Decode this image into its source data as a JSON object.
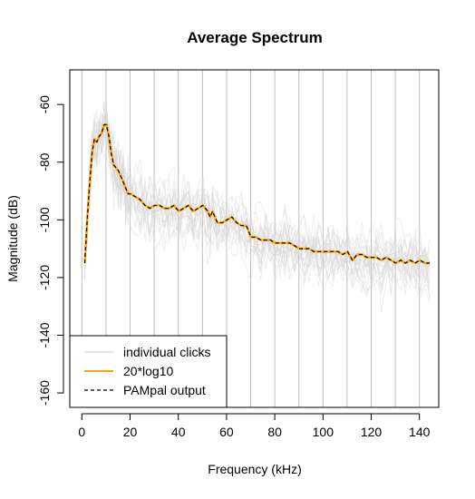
{
  "chart_data": {
    "type": "line",
    "title": "Average Spectrum",
    "xlabel": "Frequency (kHz)",
    "ylabel": "Magnitude (dB)",
    "xlim": [
      -5,
      148
    ],
    "ylim": [
      -165,
      -48
    ],
    "x_ticks": [
      0,
      20,
      40,
      60,
      80,
      100,
      120,
      140
    ],
    "y_ticks": [
      -160,
      -140,
      -120,
      -100,
      -80,
      -60
    ],
    "vertical_grid_x": [
      0,
      10,
      20,
      30,
      40,
      50,
      60,
      70,
      80,
      90,
      100,
      110,
      120,
      130,
      140
    ],
    "legend": {
      "position": "bottom-left",
      "entries": [
        {
          "label": "individual clicks",
          "color": "#c8c8c8",
          "style": "solid"
        },
        {
          "label": "20*log10",
          "color": "#ffa500",
          "style": "solid"
        },
        {
          "label": "PAMpal output",
          "color": "#000000",
          "style": "dashed"
        }
      ]
    },
    "series": [
      {
        "name": "20*log10",
        "color": "#ffa500",
        "x": [
          1.2,
          2.2,
          3.2,
          4.2,
          5.2,
          6.2,
          7.2,
          8.2,
          9.2,
          10.2,
          11.2,
          12.2,
          13.2,
          14.2,
          15.2,
          16.2,
          17.2,
          18.2,
          19.2,
          20.2,
          22.2,
          24.2,
          26.2,
          28.2,
          30.2,
          32.2,
          34.2,
          36.2,
          38.2,
          40.2,
          42.2,
          44.2,
          46.2,
          48.2,
          50.2,
          52.2,
          53.2,
          54.2,
          56.2,
          58.2,
          60.2,
          62.2,
          64.2,
          66.2,
          68.2,
          70.2,
          72.2,
          74.2,
          76.2,
          78.2,
          80.2,
          82.2,
          84.2,
          86.2,
          88.2,
          90.2,
          92.2,
          94.2,
          96.2,
          98.2,
          100.2,
          102.2,
          104.2,
          106.2,
          108.2,
          110.2,
          112.2,
          114.2,
          116.2,
          118.2,
          120.2,
          122.2,
          124.2,
          126.2,
          128.2,
          130.2,
          132.2,
          134.2,
          136.2,
          138.2,
          140.2,
          142.2,
          144.2
        ],
        "values": [
          -115,
          -100,
          -88,
          -77,
          -72,
          -73,
          -71,
          -70,
          -67,
          -67,
          -71,
          -77,
          -81,
          -82,
          -83,
          -85,
          -87,
          -89,
          -91,
          -91,
          -92,
          -93,
          -95,
          -96,
          -95,
          -95,
          -96,
          -96,
          -95,
          -97,
          -96,
          -95,
          -97,
          -96,
          -95,
          -97,
          -99,
          -97,
          -101,
          -101,
          -100,
          -99,
          -101,
          -102,
          -102,
          -106,
          -106,
          -107,
          -107,
          -107,
          -108,
          -108,
          -108,
          -108,
          -109,
          -110,
          -110,
          -110,
          -111,
          -111,
          -111,
          -111,
          -111,
          -111,
          -112,
          -111,
          -114,
          -112,
          -112,
          -113,
          -113,
          -113,
          -114,
          -113,
          -114,
          -115,
          -114,
          -115,
          -114,
          -115,
          -114,
          -115,
          -115
        ]
      },
      {
        "name": "PAMpal output",
        "color": "#000000",
        "dashed": true,
        "x": [
          1.2,
          2.2,
          3.2,
          4.2,
          5.2,
          6.2,
          7.2,
          8.2,
          9.2,
          10.2,
          11.2,
          12.2,
          13.2,
          14.2,
          15.2,
          16.2,
          17.2,
          18.2,
          19.2,
          20.2,
          22.2,
          24.2,
          26.2,
          28.2,
          30.2,
          32.2,
          34.2,
          36.2,
          38.2,
          40.2,
          42.2,
          44.2,
          46.2,
          48.2,
          50.2,
          52.2,
          53.2,
          54.2,
          56.2,
          58.2,
          60.2,
          62.2,
          64.2,
          66.2,
          68.2,
          70.2,
          72.2,
          74.2,
          76.2,
          78.2,
          80.2,
          82.2,
          84.2,
          86.2,
          88.2,
          90.2,
          92.2,
          94.2,
          96.2,
          98.2,
          100.2,
          102.2,
          104.2,
          106.2,
          108.2,
          110.2,
          112.2,
          114.2,
          116.2,
          118.2,
          120.2,
          122.2,
          124.2,
          126.2,
          128.2,
          130.2,
          132.2,
          134.2,
          136.2,
          138.2,
          140.2,
          142.2,
          144.2
        ],
        "values": [
          -115,
          -100,
          -88,
          -77,
          -72,
          -73,
          -71,
          -70,
          -67,
          -67,
          -71,
          -77,
          -81,
          -82,
          -83,
          -85,
          -87,
          -89,
          -91,
          -91,
          -92,
          -93,
          -95,
          -96,
          -95,
          -95,
          -96,
          -96,
          -95,
          -97,
          -96,
          -95,
          -97,
          -96,
          -95,
          -97,
          -99,
          -97,
          -101,
          -101,
          -100,
          -99,
          -101,
          -102,
          -102,
          -106,
          -106,
          -107,
          -107,
          -107,
          -108,
          -108,
          -108,
          -108,
          -109,
          -110,
          -110,
          -110,
          -111,
          -111,
          -111,
          -111,
          -111,
          -111,
          -112,
          -111,
          -114,
          -112,
          -112,
          -113,
          -113,
          -113,
          -114,
          -113,
          -114,
          -115,
          -114,
          -115,
          -114,
          -115,
          -114,
          -115,
          -115
        ]
      }
    ]
  }
}
